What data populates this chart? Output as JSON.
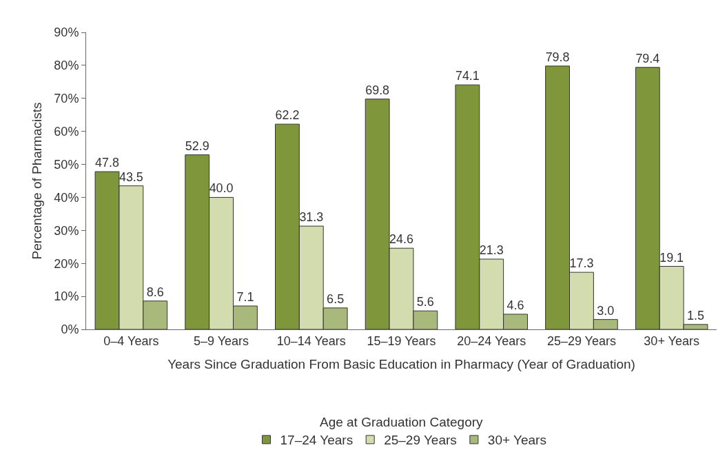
{
  "chart_data": {
    "type": "bar",
    "xlabel": "Years Since Graduation From Basic Education in Pharmacy (Year of Graduation)",
    "ylabel": "Percentage of Pharmacists",
    "legend_title": "Age at Graduation Category",
    "categories": [
      "0–4 Years",
      "5–9 Years",
      "10–14 Years",
      "15–19 Years",
      "20–24 Years",
      "25–29 Years",
      "30+ Years"
    ],
    "series": [
      {
        "name": "17–24 Years",
        "color": "#7f963a",
        "values": [
          47.8,
          52.9,
          62.2,
          69.8,
          74.1,
          79.8,
          79.4
        ],
        "value_labels": [
          "47.8",
          "52.9",
          "62.2",
          "69.8",
          "74.1",
          "79.8",
          "79.4"
        ]
      },
      {
        "name": "25–29 Years",
        "color": "#d3dcae",
        "values": [
          43.5,
          40.0,
          31.3,
          24.6,
          21.3,
          17.3,
          19.1
        ],
        "value_labels": [
          "43.5",
          "40.0",
          "31.3",
          "24.6",
          "21.3",
          "17.3",
          "19.1"
        ]
      },
      {
        "name": "30+ Years",
        "color": "#a9b97c",
        "values": [
          8.6,
          7.1,
          6.5,
          5.6,
          4.6,
          3.0,
          1.5
        ],
        "value_labels": [
          "8.6",
          "7.1",
          "6.5",
          "5.6",
          "4.6",
          "3.0",
          "1.5"
        ]
      }
    ],
    "ylim": [
      0,
      90
    ],
    "yticks": [
      {
        "value": 0,
        "label": "0%"
      },
      {
        "value": 10,
        "label": "10%"
      },
      {
        "value": 20,
        "label": "20%"
      },
      {
        "value": 30,
        "label": "30%"
      },
      {
        "value": 40,
        "label": "40%"
      },
      {
        "value": 50,
        "label": "50%"
      },
      {
        "value": 60,
        "label": "60%"
      },
      {
        "value": 70,
        "label": "70%"
      },
      {
        "value": 80,
        "label": "80%"
      },
      {
        "value": 90,
        "label": "90%"
      }
    ],
    "grid": false,
    "legend": "bottom"
  }
}
